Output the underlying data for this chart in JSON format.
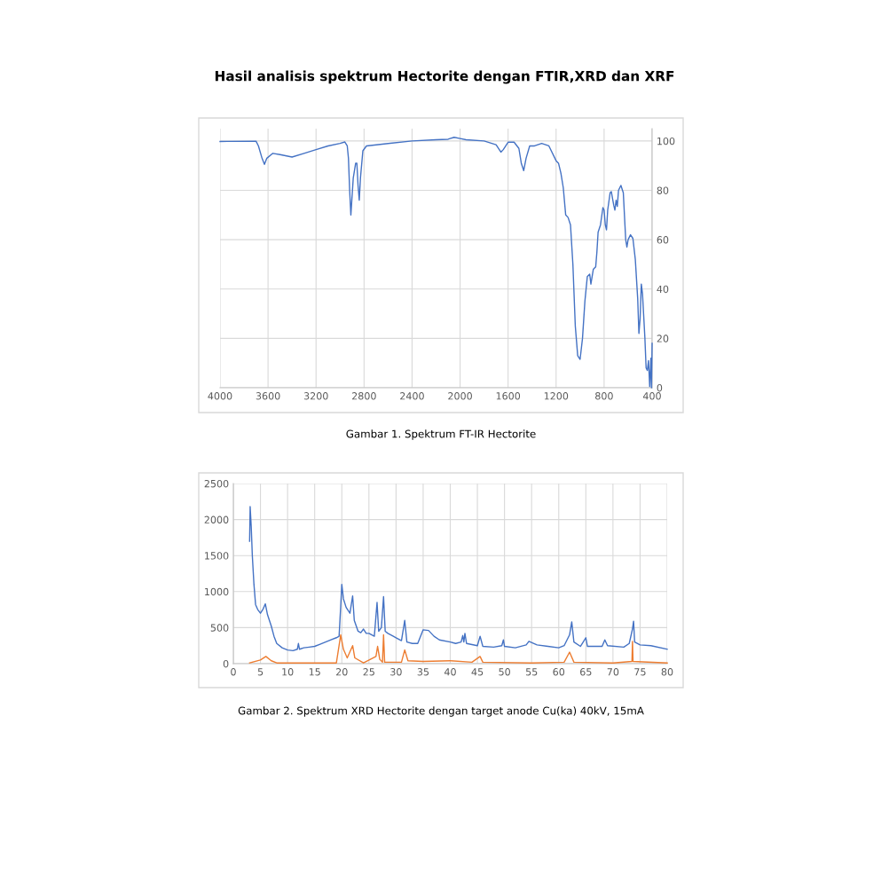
{
  "chart_data": [
    {
      "type": "line",
      "title": "Hasil analisis spektrum Hectorite dengan FTIR,XRD dan XRF",
      "annotations": [
        "Gambar 1. Spektrum FT-IR Hectorite"
      ],
      "xlim": [
        4000,
        400
      ],
      "xticks": [
        4000,
        3600,
        3200,
        2800,
        2400,
        2000,
        1600,
        1200,
        800,
        400
      ],
      "ylim": [
        0,
        105
      ],
      "yticks": [
        0,
        20,
        40,
        60,
        80,
        100
      ],
      "grid": true,
      "legend": false,
      "marker": "none",
      "line_style": "solid",
      "series": [
        {
          "color": "#4472c4",
          "x": [
            4000,
            3700,
            3680,
            3650,
            3630,
            3610,
            3560,
            3500,
            3400,
            3300,
            3200,
            3100,
            3000,
            2960,
            2940,
            2930,
            2920,
            2910,
            2890,
            2870,
            2860,
            2850,
            2840,
            2830,
            2810,
            2780,
            2600,
            2400,
            2200,
            2100,
            2050,
            2000,
            1950,
            1800,
            1700,
            1660,
            1640,
            1600,
            1550,
            1510,
            1490,
            1470,
            1450,
            1420,
            1380,
            1320,
            1260,
            1200,
            1180,
            1160,
            1140,
            1120,
            1100,
            1080,
            1060,
            1040,
            1020,
            1000,
            980,
            960,
            940,
            920,
            910,
            890,
            870,
            860,
            850,
            830,
            810,
            800,
            790,
            780,
            770,
            750,
            740,
            720,
            710,
            700,
            690,
            680,
            660,
            640,
            620,
            610,
            600,
            580,
            560,
            540,
            520,
            510,
            500,
            490,
            480,
            460,
            450,
            440,
            430,
            420,
            410,
            405,
            400
          ],
          "values": [
            99.8,
            99.9,
            98,
            93,
            90.5,
            93,
            95,
            94.5,
            93.5,
            95,
            96.5,
            98,
            99,
            99.6,
            98,
            93,
            80,
            70,
            85,
            91,
            91,
            82,
            76,
            85,
            96,
            98,
            99,
            100,
            100.5,
            100.7,
            101.5,
            101,
            100.5,
            100,
            98.5,
            95.5,
            96.5,
            99.5,
            99.5,
            97,
            91,
            88,
            93,
            98,
            98,
            99,
            98,
            92,
            91,
            87,
            81,
            70,
            69,
            66,
            50,
            25,
            13,
            11.5,
            20,
            35,
            45,
            46,
            42,
            48,
            49,
            55,
            63,
            66,
            73,
            72,
            66,
            64,
            72,
            79,
            79.5,
            74,
            72,
            76,
            73.5,
            80,
            82,
            79,
            60,
            57,
            60,
            62,
            60.5,
            52,
            36,
            22,
            28,
            42,
            38,
            20,
            8,
            7,
            11,
            0.5,
            12,
            0,
            18
          ]
        }
      ]
    },
    {
      "type": "line",
      "annotations": [
        "Gambar 2. Spektrum XRD Hectorite dengan target anode Cu(ka) 40kV, 15mA"
      ],
      "xlim": [
        0,
        80
      ],
      "xticks": [
        0,
        5,
        10,
        15,
        20,
        25,
        30,
        35,
        40,
        45,
        50,
        55,
        60,
        65,
        70,
        75,
        80
      ],
      "ylim": [
        0,
        2500
      ],
      "yticks": [
        0,
        500,
        1000,
        1500,
        2000,
        2500
      ],
      "grid": true,
      "legend": false,
      "marker": "none",
      "line_style": "solid",
      "series": [
        {
          "color": "#4472c4",
          "x": [
            3,
            3.1,
            3.3,
            3.5,
            3.8,
            4.1,
            4.5,
            5,
            5.5,
            5.9,
            6.3,
            7,
            7.5,
            8,
            9,
            10,
            11,
            11.8,
            12,
            12.2,
            13,
            14,
            15,
            16,
            17,
            18,
            19,
            19.5,
            19.8,
            20,
            20.3,
            20.8,
            21.5,
            22,
            22.3,
            23,
            23.5,
            24,
            24.5,
            25,
            26,
            26.5,
            26.8,
            27.3,
            27.7,
            28,
            28.5,
            29.5,
            30,
            31,
            31.6,
            32,
            33,
            34,
            35,
            36,
            37,
            38,
            40,
            41,
            42,
            42.3,
            42.5,
            42.7,
            43,
            45,
            45.5,
            46,
            48,
            49.5,
            49.8,
            50,
            52,
            54,
            54.5,
            56,
            58,
            60,
            61,
            62,
            62.4,
            62.8,
            64,
            65,
            65.3,
            68,
            68.5,
            69,
            72,
            73,
            73.6,
            73.8,
            74,
            75,
            77,
            80
          ],
          "values": [
            1700,
            2180,
            1900,
            1500,
            1100,
            820,
            750,
            700,
            760,
            830,
            680,
            520,
            380,
            280,
            220,
            190,
            180,
            200,
            280,
            200,
            220,
            230,
            240,
            270,
            300,
            330,
            360,
            380,
            800,
            1100,
            900,
            780,
            700,
            940,
            600,
            450,
            430,
            480,
            420,
            420,
            380,
            850,
            450,
            500,
            930,
            450,
            420,
            380,
            360,
            320,
            600,
            300,
            280,
            280,
            470,
            460,
            380,
            330,
            300,
            280,
            300,
            390,
            300,
            420,
            280,
            250,
            380,
            240,
            230,
            250,
            330,
            240,
            220,
            260,
            310,
            260,
            240,
            220,
            250,
            400,
            580,
            300,
            240,
            360,
            240,
            240,
            330,
            250,
            230,
            280,
            480,
            590,
            300,
            260,
            250,
            200
          ]
        },
        {
          "color": "#ed7d31",
          "x": [
            3,
            5,
            6,
            7,
            8,
            10,
            19,
            19.8,
            20.3,
            21,
            22,
            22.4,
            24,
            26.3,
            26.6,
            27,
            27.5,
            27.7,
            27.9,
            31,
            31.6,
            32.2,
            35,
            40,
            44,
            45.5,
            46,
            55,
            61,
            62,
            62.8,
            70,
            73.5,
            73.6,
            73.7,
            80
          ],
          "values": [
            10,
            50,
            100,
            40,
            10,
            10,
            10,
            400,
            200,
            80,
            250,
            80,
            10,
            100,
            240,
            60,
            20,
            400,
            20,
            20,
            190,
            40,
            30,
            40,
            20,
            100,
            20,
            10,
            20,
            160,
            20,
            10,
            30,
            310,
            30,
            10
          ]
        }
      ]
    }
  ]
}
